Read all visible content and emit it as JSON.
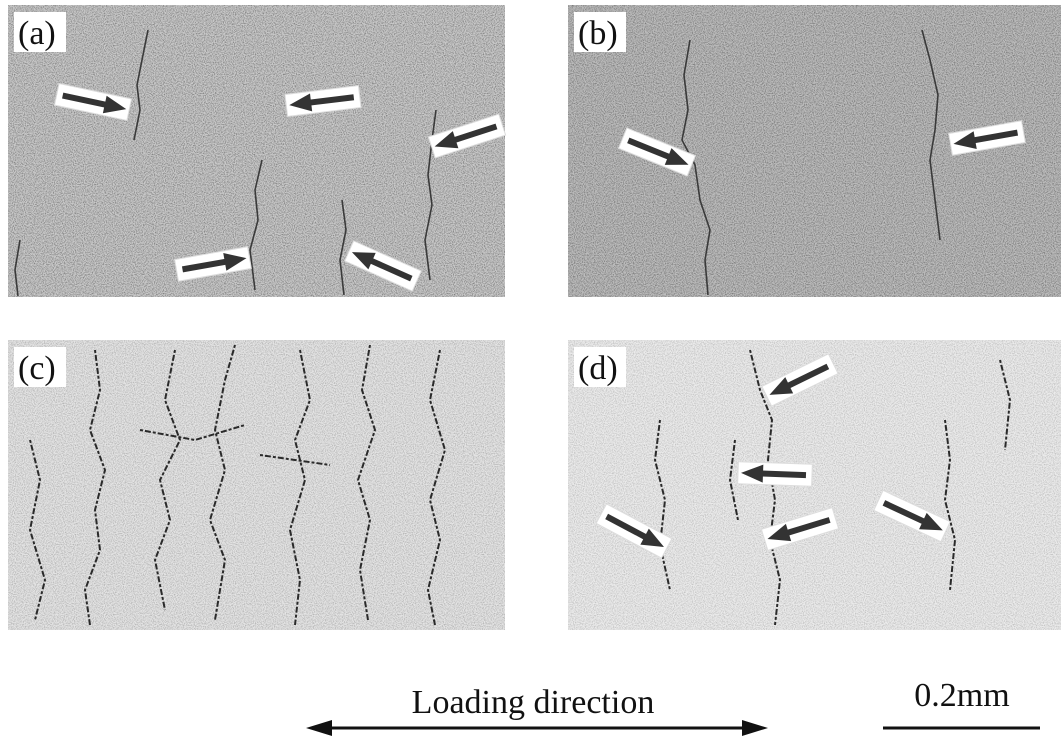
{
  "panels": [
    {
      "label": "(a)"
    },
    {
      "label": "(b)"
    },
    {
      "label": "(c)"
    },
    {
      "label": "(d)"
    }
  ],
  "caption": "Loading direction",
  "scale": "0.2mm"
}
